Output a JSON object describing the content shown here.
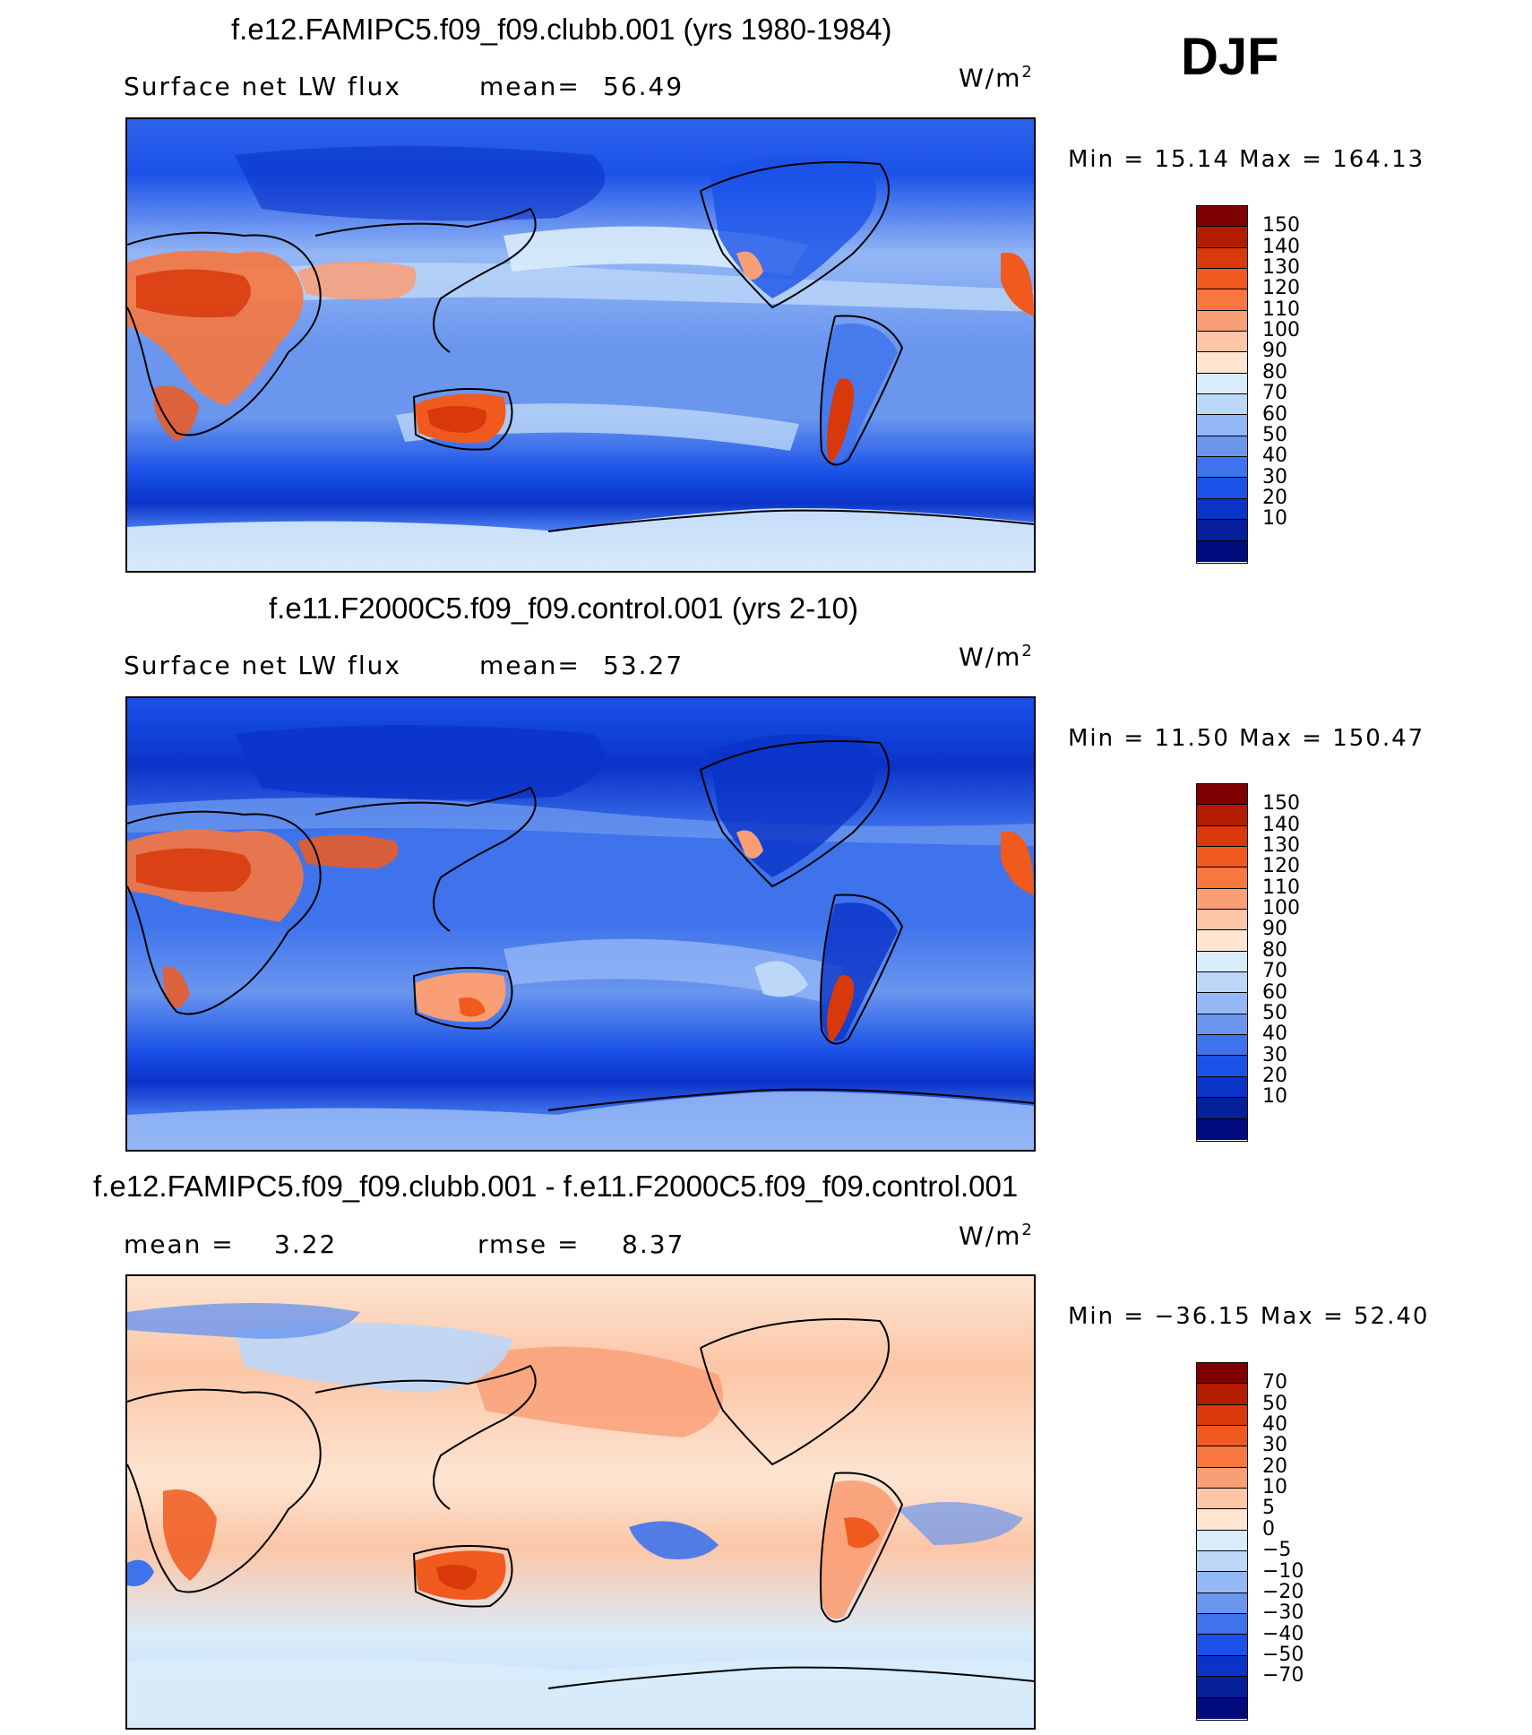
{
  "season": "DJF",
  "panels": [
    {
      "title": "f.e12.FAMIPC5.f09_f09.clubb.001 (yrs 1980-1984)",
      "variable": "Surface net LW flux",
      "stat1_label": "mean=",
      "stat1_value": "56.49",
      "stat2_label": "",
      "stat2_value": "",
      "units": "W/m",
      "units_sup": "2",
      "range_text": "Min =   15.14 Max =  164.13",
      "colorbar": {
        "labels": [
          "150",
          "140",
          "130",
          "120",
          "110",
          "100",
          "90",
          "80",
          "70",
          "60",
          "50",
          "40",
          "30",
          "20",
          "10"
        ],
        "colors": [
          "#7f0000",
          "#b31c00",
          "#d8380a",
          "#f05a1e",
          "#f7773e",
          "#f99e75",
          "#fcc6a7",
          "#fde5d2",
          "#d9ecfb",
          "#bcd7f8",
          "#94b7f5",
          "#6a96ee",
          "#3f73ec",
          "#1a52e8",
          "#0a33c8",
          "#061f9a",
          "#000b7d"
        ]
      }
    },
    {
      "title": "f.e11.F2000C5.f09_f09.control.001 (yrs 2-10)",
      "variable": "Surface net LW flux",
      "stat1_label": "mean=",
      "stat1_value": "53.27",
      "stat2_label": "",
      "stat2_value": "",
      "units": "W/m",
      "units_sup": "2",
      "range_text": "Min =   11.50 Max =  150.47",
      "colorbar": {
        "labels": [
          "150",
          "140",
          "130",
          "120",
          "110",
          "100",
          "90",
          "80",
          "70",
          "60",
          "50",
          "40",
          "30",
          "20",
          "10"
        ],
        "colors": [
          "#7f0000",
          "#b31c00",
          "#d8380a",
          "#f05a1e",
          "#f7773e",
          "#f99e75",
          "#fcc6a7",
          "#fde5d2",
          "#d9ecfb",
          "#bcd7f8",
          "#94b7f5",
          "#6a96ee",
          "#3f73ec",
          "#1a52e8",
          "#0a33c8",
          "#061f9a",
          "#000b7d"
        ]
      }
    },
    {
      "title": "f.e12.FAMIPC5.f09_f09.clubb.001 - f.e11.F2000C5.f09_f09.control.001",
      "variable": "",
      "stat1_label": "mean =",
      "stat1_value": "3.22",
      "stat2_label": "rmse =",
      "stat2_value": "8.37",
      "units": "W/m",
      "units_sup": "2",
      "range_text": "Min = −36.15 Max =   52.40",
      "colorbar": {
        "labels": [
          "70",
          "50",
          "40",
          "30",
          "20",
          "10",
          "5",
          "0",
          "−5",
          "−10",
          "−20",
          "−30",
          "−40",
          "−50",
          "−70"
        ],
        "colors": [
          "#7f0000",
          "#b31c00",
          "#d8380a",
          "#f05a1e",
          "#f7773e",
          "#f99e75",
          "#fcc6a7",
          "#fde5d2",
          "#d9ecfb",
          "#bcd7f8",
          "#94b7f5",
          "#6a96ee",
          "#3f73ec",
          "#1a52e8",
          "#0a33c8",
          "#061f9a",
          "#000b7d"
        ]
      }
    }
  ],
  "chart_data": [
    {
      "type": "heatmap",
      "title": "f.e12.FAMIPC5.f09_f09.clubb.001 (yrs 1980-1984)",
      "subtitle": "Surface net LW flux",
      "units": "W/m2",
      "mean": 56.49,
      "min": 15.14,
      "max": 164.13,
      "levels": [
        10,
        20,
        30,
        40,
        50,
        60,
        70,
        80,
        90,
        100,
        110,
        120,
        130,
        140,
        150
      ]
    },
    {
      "type": "heatmap",
      "title": "f.e11.F2000C5.f09_f09.control.001 (yrs 2-10)",
      "subtitle": "Surface net LW flux",
      "units": "W/m2",
      "mean": 53.27,
      "min": 11.5,
      "max": 150.47,
      "levels": [
        10,
        20,
        30,
        40,
        50,
        60,
        70,
        80,
        90,
        100,
        110,
        120,
        130,
        140,
        150
      ]
    },
    {
      "type": "heatmap",
      "title": "f.e12.FAMIPC5.f09_f09.clubb.001 - f.e11.F2000C5.f09_f09.control.001",
      "units": "W/m2",
      "mean": 3.22,
      "rmse": 8.37,
      "min": -36.15,
      "max": 52.4,
      "levels": [
        -70,
        -50,
        -40,
        -30,
        -20,
        -10,
        -5,
        0,
        5,
        10,
        20,
        30,
        40,
        50,
        70
      ]
    }
  ]
}
